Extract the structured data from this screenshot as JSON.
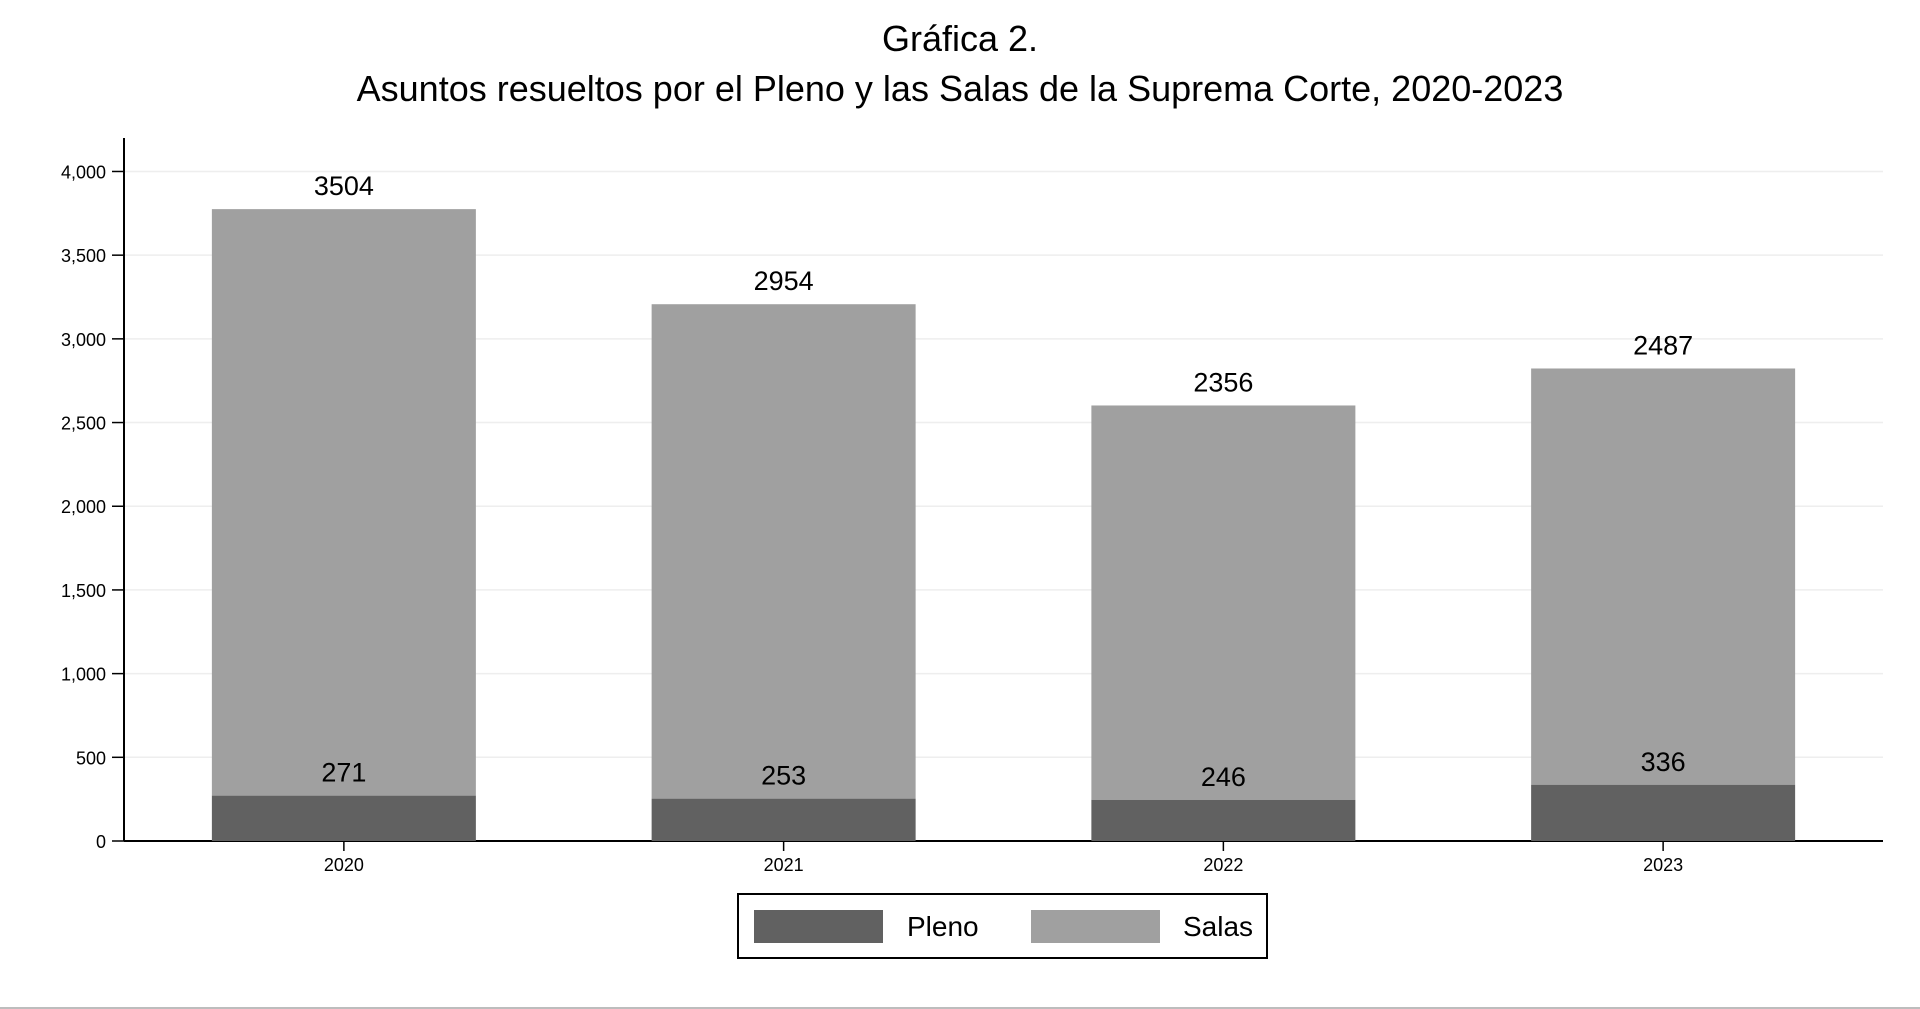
{
  "chart_data": {
    "type": "bar",
    "stacked": true,
    "title": "Gráfica 2.",
    "subtitle": "Asuntos resueltos por el Pleno y las Salas de la Suprema Corte, 2020-2023",
    "categories": [
      "2020",
      "2021",
      "2022",
      "2023"
    ],
    "series": [
      {
        "name": "Pleno",
        "values": [
          271,
          253,
          246,
          336
        ],
        "color": "#616161"
      },
      {
        "name": "Salas",
        "values": [
          3504,
          2954,
          2356,
          2487
        ],
        "color": "#a0a0a0"
      }
    ],
    "ylim": [
      0,
      4000
    ],
    "yticks": [
      0,
      500,
      1000,
      1500,
      2000,
      2500,
      3000,
      3500,
      4000
    ],
    "ytick_labels": [
      "0",
      "500",
      "1,000",
      "1,500",
      "2,000",
      "2,500",
      "3,000",
      "3,500",
      "4,000"
    ],
    "xlabel": "",
    "ylabel": "",
    "grid": true,
    "legend_position": "bottom-center"
  },
  "legend": {
    "items": [
      {
        "label": "Pleno",
        "color": "#616161"
      },
      {
        "label": "Salas",
        "color": "#a0a0a0"
      }
    ]
  }
}
